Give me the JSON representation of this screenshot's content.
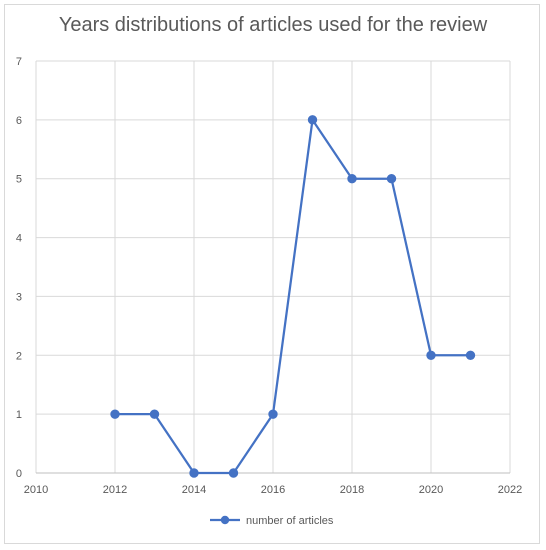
{
  "chart_data": {
    "type": "scatter",
    "title": "Years distributions of articles used for the review",
    "xlabel": "",
    "ylabel": "",
    "xlim": [
      2010,
      2022
    ],
    "ylim": [
      0,
      7
    ],
    "x_ticks": [
      2010,
      2012,
      2014,
      2016,
      2018,
      2020,
      2022
    ],
    "y_ticks": [
      0,
      1,
      2,
      3,
      4,
      5,
      6,
      7
    ],
    "grid": true,
    "legend_position": "bottom",
    "series": [
      {
        "name": "number of articles",
        "color": "#4472c4",
        "x": [
          2012,
          2013,
          2014,
          2015,
          2016,
          2017,
          2018,
          2019,
          2020,
          2021
        ],
        "y": [
          1,
          1,
          0,
          0,
          1,
          6,
          5,
          5,
          2,
          2
        ]
      }
    ]
  }
}
